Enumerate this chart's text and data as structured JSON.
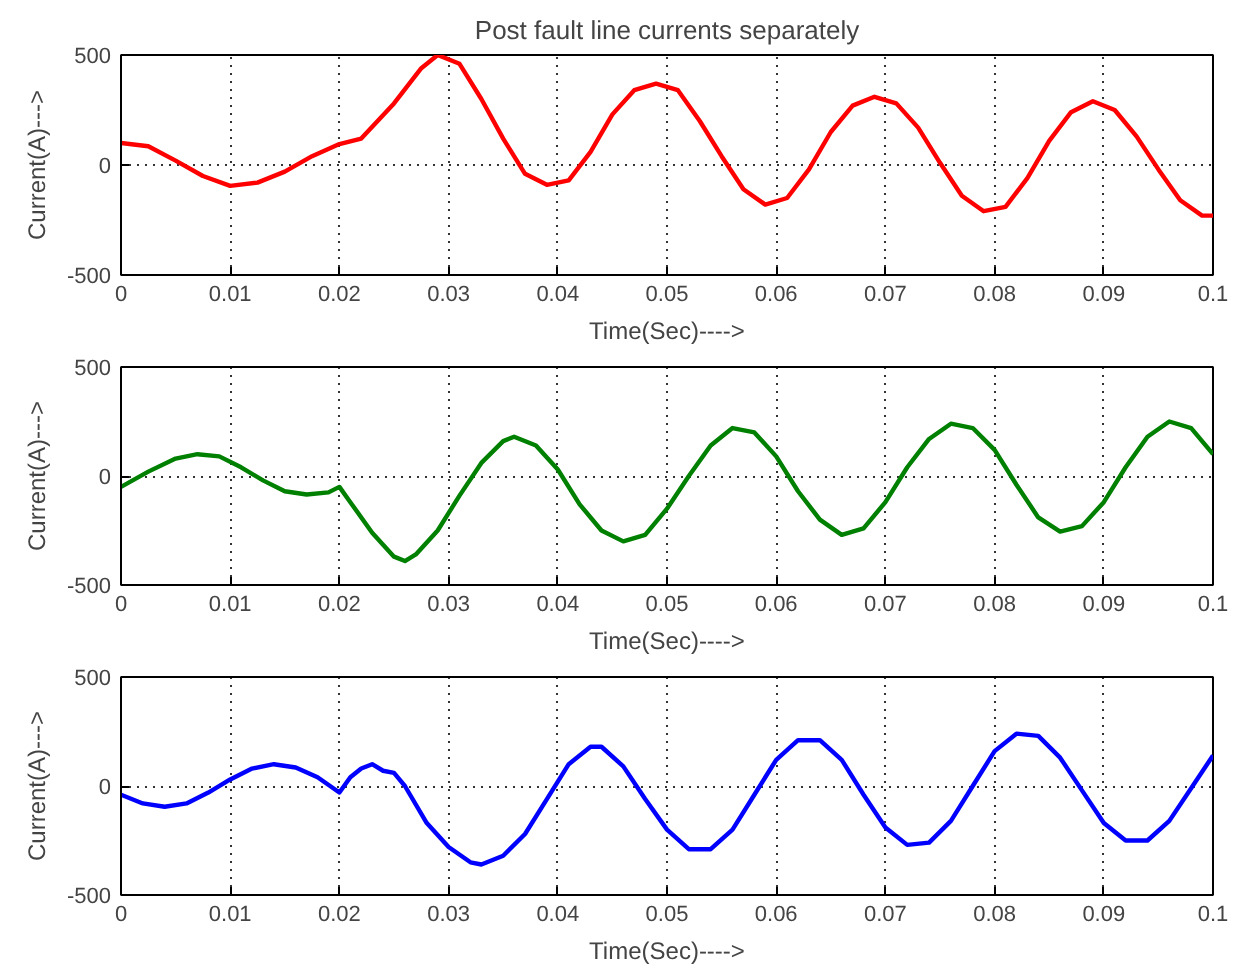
{
  "chart_data": [
    {
      "type": "line",
      "title": "Post fault line currents separately",
      "xlabel": "Time(Sec)---->",
      "ylabel": "Current(A)--->",
      "xlim": [
        0,
        0.1
      ],
      "ylim": [
        -500,
        500
      ],
      "xticks": [
        0,
        0.01,
        0.02,
        0.03,
        0.04,
        0.05,
        0.06,
        0.07,
        0.08,
        0.09,
        0.1
      ],
      "yticks": [
        -500,
        0,
        500
      ],
      "grid": true,
      "line_style": "solid",
      "series": [
        {
          "color": "#ff0000",
          "x": [
            0,
            0.0025,
            0.005,
            0.0075,
            0.01,
            0.0125,
            0.015,
            0.0175,
            0.02,
            0.022,
            0.025,
            0.0275,
            0.029,
            0.031,
            0.033,
            0.035,
            0.037,
            0.039,
            0.041,
            0.043,
            0.045,
            0.047,
            0.049,
            0.051,
            0.053,
            0.055,
            0.057,
            0.059,
            0.061,
            0.063,
            0.065,
            0.067,
            0.069,
            0.071,
            0.073,
            0.075,
            0.077,
            0.079,
            0.081,
            0.083,
            0.085,
            0.087,
            0.089,
            0.091,
            0.093,
            0.095,
            0.097,
            0.099,
            0.1
          ],
          "values": [
            100,
            85,
            20,
            -50,
            -95,
            -80,
            -30,
            40,
            95,
            120,
            280,
            440,
            500,
            460,
            300,
            120,
            -40,
            -90,
            -70,
            60,
            230,
            340,
            370,
            340,
            200,
            40,
            -110,
            -180,
            -150,
            -20,
            150,
            270,
            310,
            280,
            170,
            10,
            -140,
            -210,
            -190,
            -60,
            110,
            240,
            290,
            250,
            130,
            -20,
            -160,
            -230,
            -230
          ]
        }
      ]
    },
    {
      "type": "line",
      "xlabel": "Time(Sec)---->",
      "ylabel": "Current(A)--->",
      "xlim": [
        0,
        0.1
      ],
      "ylim": [
        -500,
        500
      ],
      "xticks": [
        0,
        0.01,
        0.02,
        0.03,
        0.04,
        0.05,
        0.06,
        0.07,
        0.08,
        0.09,
        0.1
      ],
      "yticks": [
        -500,
        0,
        500
      ],
      "grid": true,
      "line_style": "solid",
      "series": [
        {
          "color": "#008000",
          "x": [
            0,
            0.0025,
            0.005,
            0.007,
            0.009,
            0.011,
            0.013,
            0.015,
            0.017,
            0.019,
            0.02,
            0.021,
            0.023,
            0.025,
            0.026,
            0.027,
            0.029,
            0.031,
            0.033,
            0.035,
            0.036,
            0.038,
            0.04,
            0.042,
            0.044,
            0.046,
            0.048,
            0.05,
            0.052,
            0.054,
            0.056,
            0.058,
            0.06,
            0.062,
            0.064,
            0.066,
            0.068,
            0.07,
            0.072,
            0.074,
            0.076,
            0.078,
            0.08,
            0.082,
            0.084,
            0.086,
            0.088,
            0.09,
            0.092,
            0.094,
            0.096,
            0.098,
            0.1
          ],
          "values": [
            -50,
            20,
            80,
            100,
            90,
            40,
            -20,
            -70,
            -85,
            -75,
            -50,
            -120,
            -260,
            -370,
            -390,
            -360,
            -250,
            -90,
            60,
            160,
            180,
            140,
            30,
            -130,
            -250,
            -300,
            -270,
            -150,
            0,
            140,
            220,
            200,
            90,
            -70,
            -200,
            -270,
            -240,
            -120,
            40,
            170,
            240,
            220,
            120,
            -40,
            -190,
            -255,
            -230,
            -120,
            40,
            180,
            250,
            220,
            100
          ]
        }
      ]
    },
    {
      "type": "line",
      "xlabel": "Time(Sec)---->",
      "ylabel": "Current(A)--->",
      "xlim": [
        0,
        0.1
      ],
      "ylim": [
        -500,
        500
      ],
      "xticks": [
        0,
        0.01,
        0.02,
        0.03,
        0.04,
        0.05,
        0.06,
        0.07,
        0.08,
        0.09,
        0.1
      ],
      "yticks": [
        -500,
        0,
        500
      ],
      "grid": true,
      "line_style": "solid",
      "series": [
        {
          "color": "#0000ff",
          "x": [
            0,
            0.002,
            0.004,
            0.006,
            0.008,
            0.01,
            0.012,
            0.014,
            0.016,
            0.018,
            0.02,
            0.021,
            0.022,
            0.023,
            0.024,
            0.025,
            0.026,
            0.028,
            0.03,
            0.032,
            0.033,
            0.035,
            0.037,
            0.039,
            0.041,
            0.043,
            0.044,
            0.046,
            0.048,
            0.05,
            0.052,
            0.054,
            0.056,
            0.058,
            0.06,
            0.062,
            0.064,
            0.066,
            0.068,
            0.07,
            0.072,
            0.074,
            0.076,
            0.078,
            0.08,
            0.082,
            0.084,
            0.086,
            0.088,
            0.09,
            0.092,
            0.094,
            0.096,
            0.098,
            0.1
          ],
          "values": [
            -40,
            -80,
            -95,
            -80,
            -30,
            30,
            80,
            100,
            85,
            40,
            -30,
            40,
            80,
            100,
            70,
            60,
            0,
            -170,
            -280,
            -350,
            -360,
            -320,
            -220,
            -60,
            100,
            180,
            180,
            90,
            -60,
            -200,
            -290,
            -290,
            -200,
            -40,
            120,
            210,
            210,
            120,
            -40,
            -190,
            -270,
            -260,
            -160,
            0,
            160,
            240,
            230,
            130,
            -20,
            -170,
            -250,
            -250,
            -160,
            -10,
            140
          ]
        }
      ]
    }
  ]
}
